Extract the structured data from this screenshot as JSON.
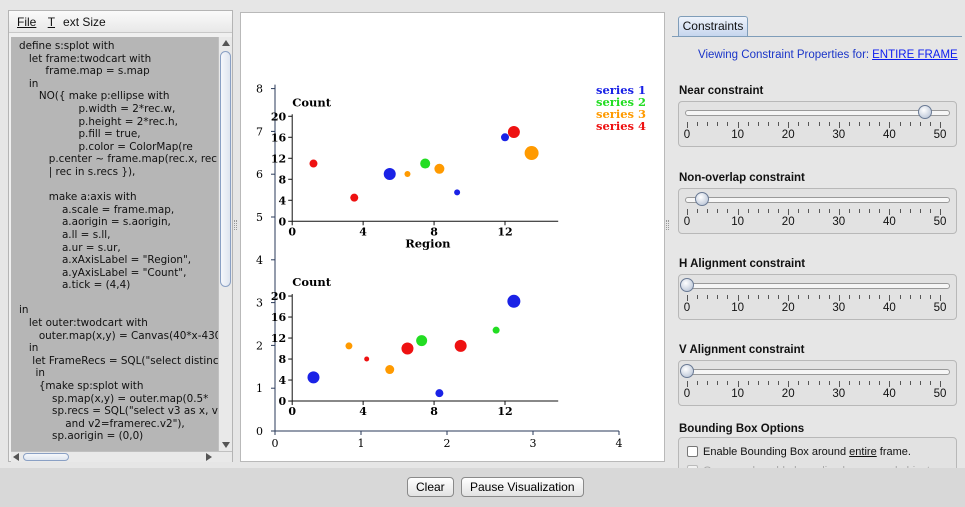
{
  "menu": {
    "file_label": "File",
    "text_size_label": "Text Size"
  },
  "editor": {
    "code_lines": [
      "define s:splot with",
      "   let frame:twodcart with",
      "        frame.map = s.map",
      "   in",
      "      NO({ make p:ellipse with",
      "                  p.width = 2*rec.w,",
      "                  p.height = 2*rec.h,",
      "                  p.fill = true,",
      "                  p.color = ColorMap(re",
      "         p.center ~ frame.map(rec.x, rec",
      "         | rec in s.recs }),",
      "",
      "         make a:axis with",
      "             a.scale = frame.map,",
      "             a.aorigin = s.aorigin,",
      "             a.ll = s.ll,",
      "             a.ur = s.ur,",
      "             a.xAxisLabel = \"Region\",",
      "             a.yAxisLabel = \"Count\",",
      "             a.tick = (4,4)",
      "",
      "in",
      "   let outer:twodcart with",
      "      outer.map(x,y) = Canvas(40*x-430",
      "   in",
      "    let FrameRecs = SQL(\"select distinct",
      "     in",
      "      {make sp:splot with",
      "          sp.map(x,y) = outer.map(0.5*",
      "          sp.recs = SQL(\"select v3 as x, v",
      "              and v2=framerec.v2\"),",
      "          sp.aorigin = (0,0)"
    ]
  },
  "chart_data": {
    "type": "scatter",
    "outer_axes": {
      "xlim": [
        0,
        4
      ],
      "ylim": [
        0,
        8
      ],
      "x_ticks": [
        "0",
        "1",
        "2",
        "3",
        "4"
      ],
      "y_ticks": [
        "0",
        "1",
        "2",
        "3",
        "4",
        "5",
        "6",
        "7",
        "8"
      ]
    },
    "legend": {
      "placement": "top-right",
      "entries": [
        {
          "name": "series 1",
          "color": "#1a22e6"
        },
        {
          "name": "series 2",
          "color": "#22dd22"
        },
        {
          "name": "series 3",
          "color": "#ff9a00"
        },
        {
          "name": "series 4",
          "color": "#ee1111"
        }
      ]
    },
    "subplots": [
      {
        "origin": [
          0.2,
          4.9
        ],
        "xlabel": "Region",
        "ylabel": "Count",
        "x_ticks": [
          "0",
          "4",
          "8",
          "12"
        ],
        "y_ticks": [
          "0",
          "4",
          "8",
          "12",
          "16",
          "20"
        ],
        "xlim": [
          0,
          15
        ],
        "ylim": [
          0,
          20
        ],
        "points": [
          {
            "x": 1.2,
            "y": 11,
            "size": 4,
            "color": "#ee1111"
          },
          {
            "x": 3.5,
            "y": 4.5,
            "size": 4,
            "color": "#ee1111"
          },
          {
            "x": 5.5,
            "y": 9,
            "size": 6,
            "color": "#1a22e6"
          },
          {
            "x": 6.5,
            "y": 9,
            "size": 3,
            "color": "#ff9a00"
          },
          {
            "x": 7.5,
            "y": 11,
            "size": 5,
            "color": "#22dd22"
          },
          {
            "x": 8.3,
            "y": 10,
            "size": 5,
            "color": "#ff9a00"
          },
          {
            "x": 9.3,
            "y": 5.5,
            "size": 3,
            "color": "#1a22e6"
          },
          {
            "x": 12,
            "y": 16,
            "size": 4,
            "color": "#1a22e6"
          },
          {
            "x": 12.5,
            "y": 17,
            "size": 6,
            "color": "#ee1111"
          },
          {
            "x": 13.5,
            "y": 13,
            "size": 7,
            "color": "#ff9a00"
          }
        ]
      },
      {
        "origin": [
          0.2,
          0.7
        ],
        "xlabel": "",
        "ylabel": "Count",
        "x_ticks": [
          "0",
          "4",
          "8",
          "12"
        ],
        "y_ticks": [
          "0",
          "4",
          "8",
          "12",
          "16",
          "20"
        ],
        "xlim": [
          0,
          15
        ],
        "ylim": [
          0,
          20
        ],
        "points": [
          {
            "x": 1.2,
            "y": 4.5,
            "size": 6,
            "color": "#1a22e6"
          },
          {
            "x": 3.2,
            "y": 10.5,
            "size": 3.5,
            "color": "#ff9a00"
          },
          {
            "x": 4.2,
            "y": 8,
            "size": 2.5,
            "color": "#ee1111"
          },
          {
            "x": 5.5,
            "y": 6,
            "size": 4.5,
            "color": "#ff9a00"
          },
          {
            "x": 6.5,
            "y": 10,
            "size": 6,
            "color": "#ee1111"
          },
          {
            "x": 7.3,
            "y": 11.5,
            "size": 5.5,
            "color": "#22dd22"
          },
          {
            "x": 8.3,
            "y": 1.5,
            "size": 4,
            "color": "#1a22e6"
          },
          {
            "x": 9.5,
            "y": 10.5,
            "size": 6,
            "color": "#ee1111"
          },
          {
            "x": 11.5,
            "y": 13.5,
            "size": 3.5,
            "color": "#22dd22"
          },
          {
            "x": 12.5,
            "y": 19,
            "size": 6.5,
            "color": "#1a22e6"
          }
        ]
      }
    ]
  },
  "constraints": {
    "tab_label": "Constraints",
    "viewing_label": "Viewing Constraint Properties for:",
    "viewing_link": "ENTIRE FRAME",
    "sliders": [
      {
        "label": "Near constraint",
        "value": 47
      },
      {
        "label": "Non-overlap constraint",
        "value": 3
      },
      {
        "label": "H Alignment constraint",
        "value": 0
      },
      {
        "label": "V Alignment constraint",
        "value": 0
      }
    ],
    "tick_labels": [
      "0",
      "10",
      "20",
      "30",
      "40",
      "50"
    ],
    "bbox_title": "Bounding Box Options",
    "bbox_option1_prefix": "Enable Bounding Box around ",
    "bbox_option1_underlined": "entire",
    "bbox_option1_suffix": " frame.",
    "bbox_option2": "Group and enable bounding box around objects."
  },
  "buttons": {
    "clear": "Clear",
    "pause": "Pause Visualization"
  }
}
